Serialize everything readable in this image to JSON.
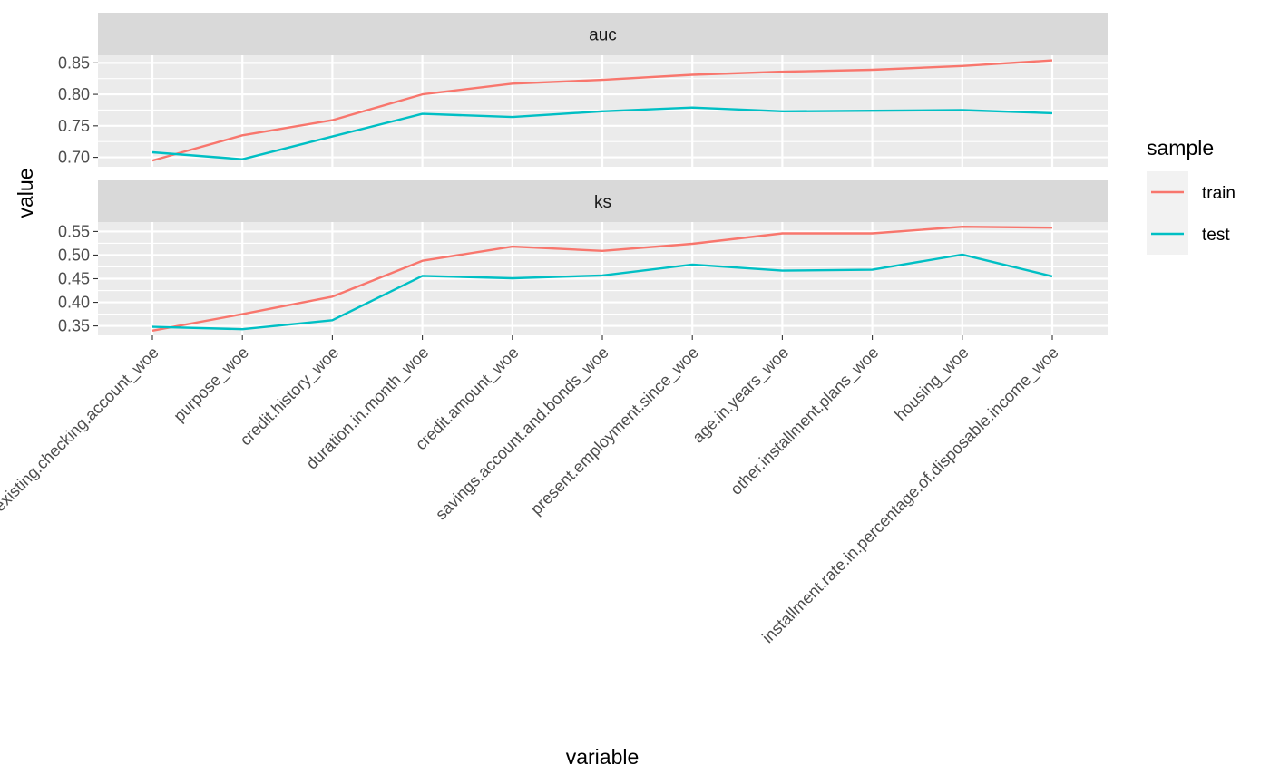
{
  "chart_data": {
    "type": "line",
    "xlabel": "variable",
    "ylabel": "value",
    "categories": [
      "status.of.existing.checking.account_woe",
      "purpose_woe",
      "credit.history_woe",
      "duration.in.month_woe",
      "credit.amount_woe",
      "savings.account.and.bonds_woe",
      "present.employment.since_woe",
      "age.in.years_woe",
      "other.installment.plans_woe",
      "housing_woe",
      "installment.rate.in.percentage.of.disposable.income_woe"
    ],
    "legend": {
      "title": "sample",
      "position": "right",
      "entries": [
        {
          "label": "train",
          "color": "#F8766D"
        },
        {
          "label": "test",
          "color": "#00BFC4"
        }
      ]
    },
    "grid": true,
    "panels": [
      {
        "strip": "auc",
        "ylim": [
          0.685,
          0.862
        ],
        "yticks": [
          0.7,
          0.75,
          0.8,
          0.85
        ],
        "ytick_labels": [
          "0.70",
          "0.75",
          "0.80",
          "0.85"
        ],
        "series": [
          {
            "name": "train",
            "color": "#F8766D",
            "values": [
              0.695,
              0.735,
              0.759,
              0.8,
              0.817,
              0.823,
              0.831,
              0.836,
              0.839,
              0.845,
              0.854
            ]
          },
          {
            "name": "test",
            "color": "#00BFC4",
            "values": [
              0.708,
              0.697,
              0.733,
              0.769,
              0.764,
              0.773,
              0.779,
              0.773,
              0.774,
              0.775,
              0.77
            ]
          }
        ]
      },
      {
        "strip": "ks",
        "ylim": [
          0.33,
          0.57
        ],
        "yticks": [
          0.35,
          0.4,
          0.45,
          0.5,
          0.55
        ],
        "ytick_labels": [
          "0.35",
          "0.40",
          "0.45",
          "0.50",
          "0.55"
        ],
        "series": [
          {
            "name": "train",
            "color": "#F8766D",
            "values": [
              0.34,
              0.375,
              0.412,
              0.488,
              0.518,
              0.509,
              0.524,
              0.546,
              0.546,
              0.56,
              0.558
            ]
          },
          {
            "name": "test",
            "color": "#00BFC4",
            "values": [
              0.348,
              0.343,
              0.362,
              0.456,
              0.451,
              0.457,
              0.48,
              0.467,
              0.469,
              0.501,
              0.455
            ]
          }
        ]
      }
    ]
  }
}
